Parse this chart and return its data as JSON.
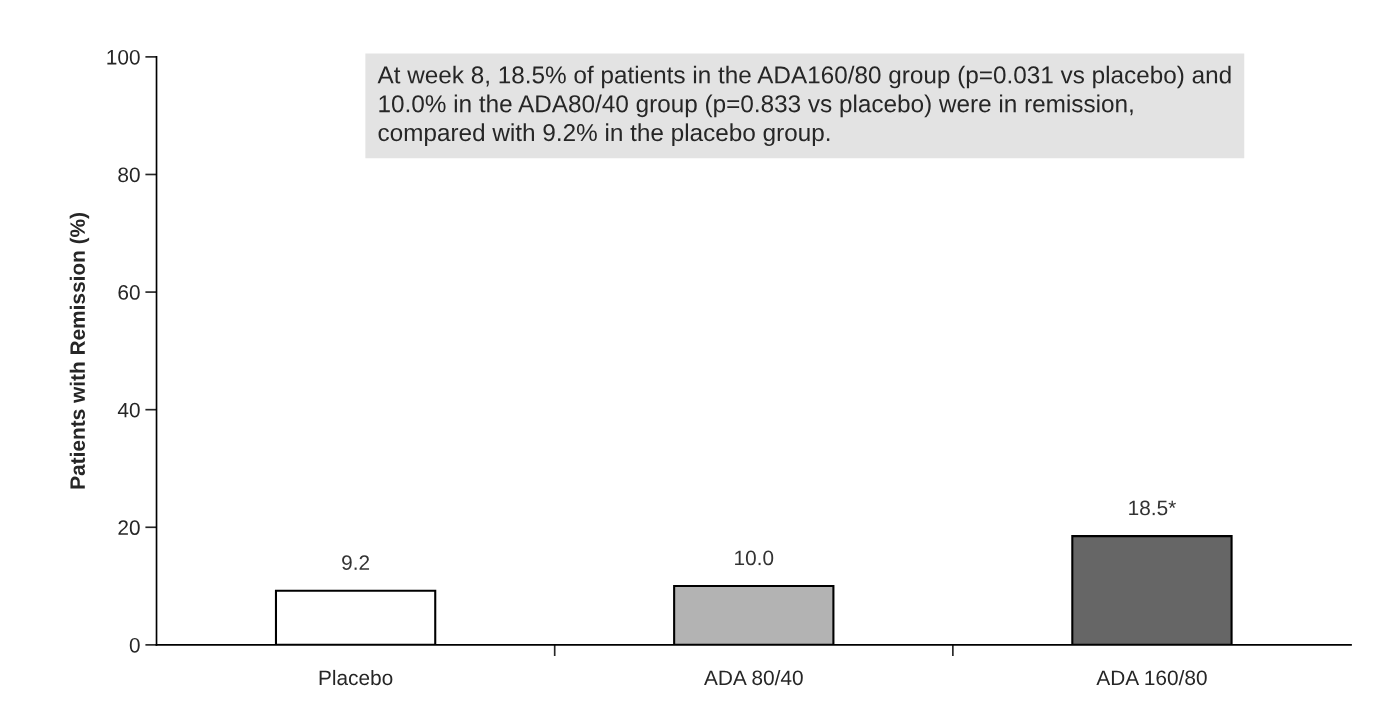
{
  "chart_data": {
    "type": "bar",
    "ylabel": "Patients with Remission (%)",
    "categories": [
      "Placebo",
      "ADA 80/40",
      "ADA 160/80"
    ],
    "values": [
      9.2,
      10.0,
      18.5
    ],
    "colors": [
      "#ffffff",
      "#b3b3b3",
      "#666666"
    ],
    "value_labels": [
      "9.2",
      "10.0",
      "18.5*"
    ],
    "ylim": [
      0,
      100
    ],
    "yticks": [
      0,
      20,
      40,
      60,
      80,
      100
    ],
    "grid": false,
    "legend": false,
    "annotations": [
      "At week 8, 18.5% of patients in the ADA160/80 group (p=0.031 vs placebo) and 10.0% in the ADA80/40 group (p=0.833 vs placebo) were in remission, compared with 9.2% in the placebo group."
    ]
  }
}
